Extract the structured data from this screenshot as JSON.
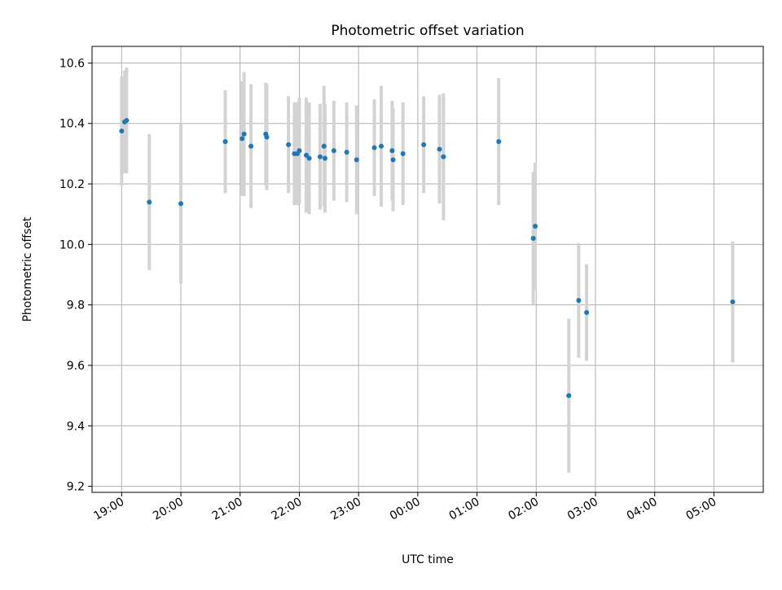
{
  "chart_data": {
    "type": "scatter",
    "title": "Photometric offset variation",
    "xlabel": "UTC time",
    "ylabel": "Photometric offset",
    "xlim": [
      "18:30",
      "05:50"
    ],
    "ylim": [
      9.18,
      10.655
    ],
    "grid": true,
    "x_ticks": [
      "19:00",
      "20:00",
      "21:00",
      "22:00",
      "23:00",
      "00:00",
      "01:00",
      "02:00",
      "03:00",
      "04:00",
      "05:00"
    ],
    "y_ticks": [
      "9.2",
      "9.4",
      "9.6",
      "9.8",
      "10.0",
      "10.2",
      "10.4",
      "10.6"
    ],
    "colors": {
      "point": "#1f77b4",
      "errorbar": "#d3d3d3",
      "grid": "#b0b0b0"
    },
    "points": [
      {
        "time": "19:00",
        "y": 10.375,
        "err": 0.18
      },
      {
        "time": "19:03",
        "y": 10.405,
        "err": 0.17
      },
      {
        "time": "19:05",
        "y": 10.41,
        "err": 0.175
      },
      {
        "time": "19:28",
        "y": 10.14,
        "err": 0.225
      },
      {
        "time": "20:00",
        "y": 10.135,
        "err": 0.265
      },
      {
        "time": "20:45",
        "y": 10.34,
        "err": 0.17
      },
      {
        "time": "21:02",
        "y": 10.35,
        "err": 0.19
      },
      {
        "time": "21:04",
        "y": 10.365,
        "err": 0.205
      },
      {
        "time": "21:11",
        "y": 10.325,
        "err": 0.205
      },
      {
        "time": "21:26",
        "y": 10.365,
        "err": 0.17
      },
      {
        "time": "21:27",
        "y": 10.355,
        "err": 0.175
      },
      {
        "time": "21:49",
        "y": 10.33,
        "err": 0.16
      },
      {
        "time": "21:55",
        "y": 10.3,
        "err": 0.17
      },
      {
        "time": "21:58",
        "y": 10.3,
        "err": 0.17
      },
      {
        "time": "22:00",
        "y": 10.31,
        "err": 0.175
      },
      {
        "time": "22:07",
        "y": 10.295,
        "err": 0.19
      },
      {
        "time": "22:10",
        "y": 10.285,
        "err": 0.185
      },
      {
        "time": "22:21",
        "y": 10.29,
        "err": 0.175
      },
      {
        "time": "22:25",
        "y": 10.325,
        "err": 0.2
      },
      {
        "time": "22:26",
        "y": 10.285,
        "err": 0.18
      },
      {
        "time": "22:35",
        "y": 10.31,
        "err": 0.165
      },
      {
        "time": "22:48",
        "y": 10.305,
        "err": 0.165
      },
      {
        "time": "22:58",
        "y": 10.28,
        "err": 0.18
      },
      {
        "time": "23:16",
        "y": 10.32,
        "err": 0.16
      },
      {
        "time": "23:23",
        "y": 10.325,
        "err": 0.2
      },
      {
        "time": "23:34",
        "y": 10.31,
        "err": 0.165
      },
      {
        "time": "23:35",
        "y": 10.28,
        "err": 0.17
      },
      {
        "time": "23:45",
        "y": 10.3,
        "err": 0.17
      },
      {
        "time": "00:06",
        "y": 10.33,
        "err": 0.16
      },
      {
        "time": "00:22",
        "y": 10.315,
        "err": 0.18
      },
      {
        "time": "00:26",
        "y": 10.29,
        "err": 0.21
      },
      {
        "time": "01:22",
        "y": 10.34,
        "err": 0.21
      },
      {
        "time": "01:57",
        "y": 10.02,
        "err": 0.22
      },
      {
        "time": "01:59",
        "y": 10.06,
        "err": 0.21
      },
      {
        "time": "02:33",
        "y": 9.5,
        "err": 0.255
      },
      {
        "time": "02:43",
        "y": 9.815,
        "err": 0.19
      },
      {
        "time": "02:51",
        "y": 9.775,
        "err": 0.16
      },
      {
        "time": "05:19",
        "y": 9.81,
        "err": 0.2
      }
    ]
  }
}
